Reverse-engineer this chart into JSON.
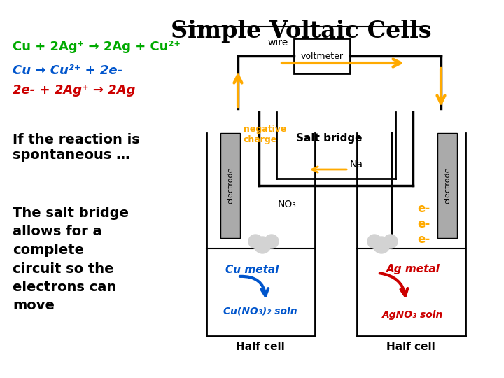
{
  "title": "Simple Voltaic Cells",
  "title_fontsize": 26,
  "title_color": "#000000",
  "title_underline": true,
  "bg_color": "#ffffff",
  "eq1": "Cu + 2Ag⁺ → 2Ag + Cu²⁺",
  "eq1_color": "#00aa00",
  "eq2": "Cu → Cu²⁺ + 2e-",
  "eq2_color": "#0055cc",
  "eq3": "2e- + 2Ag⁺ → 2Ag",
  "eq3_color": "#cc0000",
  "text1": "If the reaction is\nspontaneous …",
  "text2": "The salt bridge\nallows for a\ncomplete\ncircuit so the\nelectrons can\nmove",
  "voltmeter_label": "voltmeter",
  "wire_label": "wire",
  "neg_charge_label": "negative\ncharge",
  "salt_bridge_label": "Salt bridge",
  "na_label": "Na⁺",
  "no3_label": "NO₃⁻",
  "electrode_label": "electrode",
  "cu_metal_label": "Cu metal",
  "cu_soln_label": "Cu(NO₃)₂ soln",
  "ag_metal_label": "Ag metal",
  "ag_soln_label": "AgNO₃ soln",
  "half_cell_label": "Half cell",
  "e_labels": [
    "e-",
    "e-",
    "e-"
  ],
  "arrow_color": "#ffaa00",
  "e_color": "#ffaa00",
  "cu_arrow_color": "#0055cc",
  "ag_arrow_color": "#cc0000",
  "electrode_color": "#aaaaaa",
  "wire_color": "#000000",
  "salt_bridge_color": "#000000"
}
